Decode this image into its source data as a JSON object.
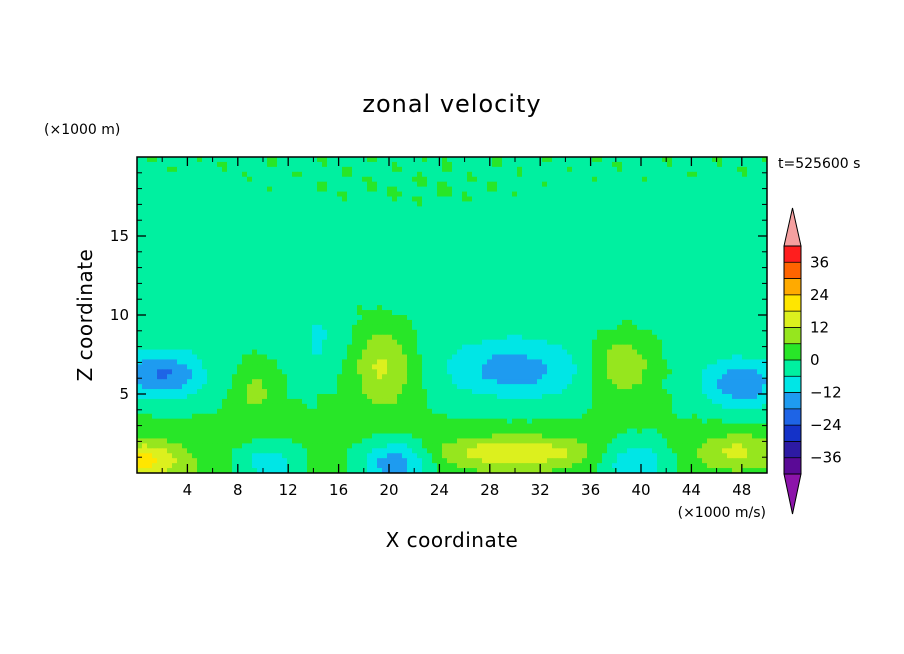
{
  "chart_data": {
    "type": "heatmap",
    "title": "zonal velocity",
    "xlabel": "X coordinate",
    "ylabel": "Z coordinate",
    "x_units": "(×1000 m/s)",
    "y_units": "(×1000 m)",
    "time_label": "t=525600 s",
    "xlim": [
      0,
      50
    ],
    "ylim": [
      0,
      20
    ],
    "x_ticks": [
      4,
      8,
      12,
      16,
      20,
      24,
      28,
      32,
      36,
      40,
      44,
      48
    ],
    "x_tick_labels": [
      "4",
      "8",
      "12",
      "16",
      "20",
      "24",
      "28",
      "32",
      "36",
      "40",
      "44",
      "48"
    ],
    "y_ticks": [
      5,
      10,
      15
    ],
    "y_tick_labels": [
      "5",
      "10",
      "15"
    ],
    "colorbar": {
      "levels": [
        -42,
        -36,
        -30,
        -24,
        -18,
        -12,
        -6,
        0,
        6,
        12,
        18,
        24,
        30,
        36,
        42
      ],
      "tick_values": [
        -36,
        -24,
        -12,
        0,
        12,
        24,
        36
      ],
      "tick_labels": [
        "−36",
        "−24",
        "−12",
        "0",
        "12",
        "24",
        "36"
      ],
      "colors": [
        "#5a0a96",
        "#2d1aa3",
        "#1432c8",
        "#1e64e6",
        "#1e9bf0",
        "#00e6e6",
        "#00f0a0",
        "#28e628",
        "#96e61e",
        "#dcf01e",
        "#ffe600",
        "#ffaa00",
        "#ff6400",
        "#ff1e1e"
      ],
      "below_color": "#8c14aa",
      "above_color": "#f5a0a0"
    },
    "features": [
      {
        "x": 2,
        "z": 6.2,
        "sx": 3.2,
        "sz": 1.5,
        "amp": -18
      },
      {
        "x": 30,
        "z": 6.5,
        "sx": 5.5,
        "sz": 1.9,
        "amp": -14
      },
      {
        "x": 48,
        "z": 5.6,
        "sx": 3.2,
        "sz": 1.6,
        "amp": -16
      },
      {
        "x": 14.5,
        "z": 8.2,
        "sx": 2.2,
        "sz": 1.8,
        "amp": -5
      },
      {
        "x": 19.5,
        "z": 6.8,
        "sx": 2.4,
        "sz": 2.8,
        "amp": 14
      },
      {
        "x": 38.5,
        "z": 6.8,
        "sx": 2.4,
        "sz": 2.0,
        "amp": 13
      },
      {
        "x": 9.5,
        "z": 5.2,
        "sx": 1.6,
        "sz": 1.9,
        "amp": 8
      },
      {
        "x": 0.5,
        "z": 0.8,
        "sx": 3.2,
        "sz": 1.2,
        "amp": 17
      },
      {
        "x": 30,
        "z": 1.3,
        "sx": 5.8,
        "sz": 1.0,
        "amp": 15
      },
      {
        "x": 47.5,
        "z": 1.4,
        "sx": 3.0,
        "sz": 1.1,
        "amp": 11
      },
      {
        "x": 10.5,
        "z": 0.6,
        "sx": 2.5,
        "sz": 1.2,
        "amp": -13
      },
      {
        "x": 20.5,
        "z": 0.6,
        "sx": 2.8,
        "sz": 1.4,
        "amp": -19
      },
      {
        "x": 39.5,
        "z": 0.6,
        "sx": 2.8,
        "sz": 1.4,
        "amp": -15
      },
      {
        "x": 22,
        "z": 17.8,
        "sx": 9,
        "sz": 0.9,
        "amp": 1.4
      }
    ]
  }
}
